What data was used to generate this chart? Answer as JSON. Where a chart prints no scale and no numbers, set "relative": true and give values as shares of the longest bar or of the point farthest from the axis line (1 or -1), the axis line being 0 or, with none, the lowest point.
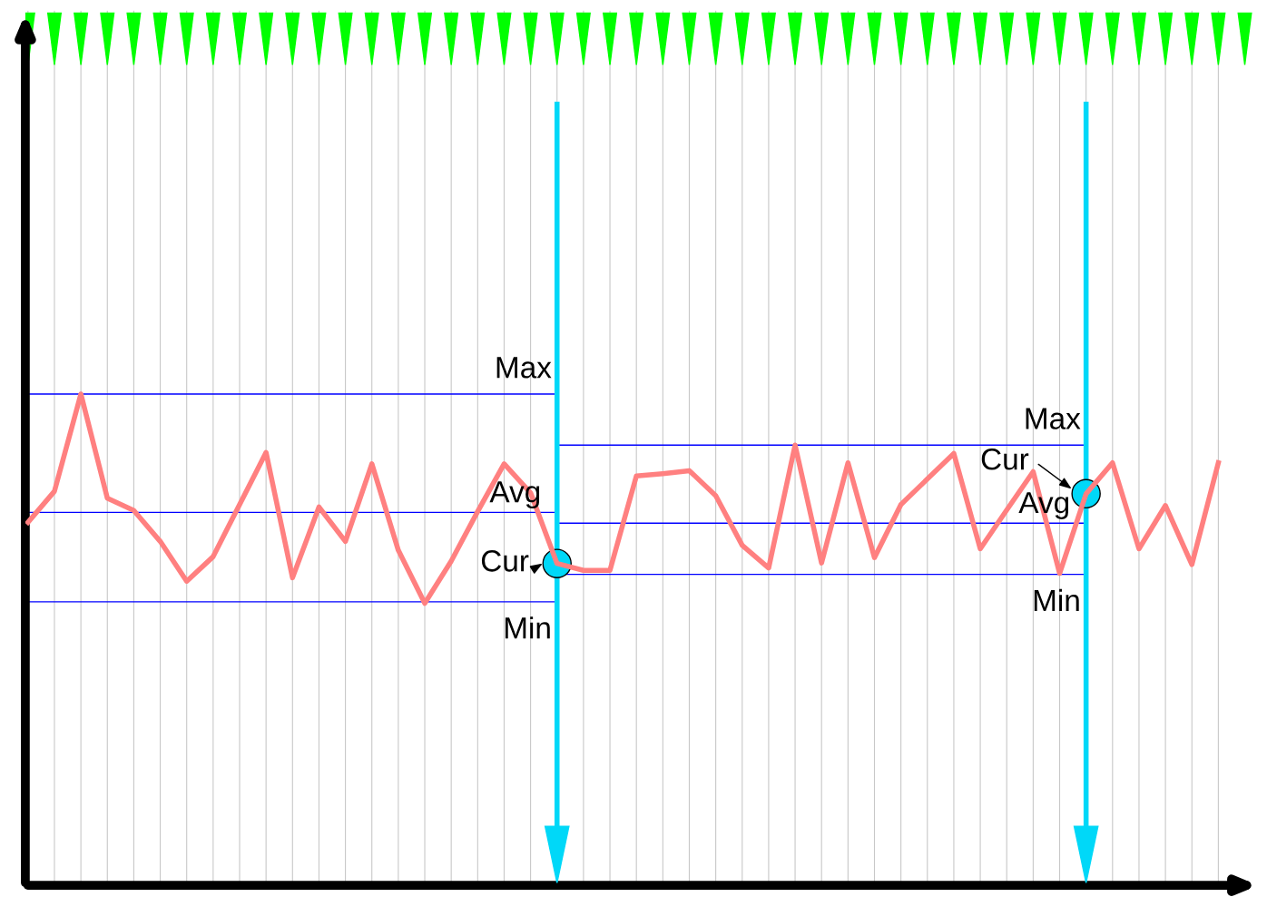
{
  "chart_data": {
    "type": "line",
    "relative": true,
    "grid": "x",
    "categories": [
      null,
      null,
      null,
      null,
      null,
      null,
      null,
      null,
      null,
      null,
      null,
      null,
      null,
      null,
      null,
      null,
      null,
      null,
      null,
      null,
      null,
      null,
      null,
      null,
      null,
      null,
      null,
      null,
      null,
      null,
      null,
      null,
      null,
      null,
      null,
      null,
      null,
      null,
      null,
      null,
      null,
      null,
      null,
      null,
      null,
      null
    ],
    "series": [
      {
        "color": "#ff8080",
        "values": [
          0.739,
          0.802,
          1.0,
          0.788,
          0.763,
          0.7,
          0.619,
          0.669,
          0.775,
          0.881,
          0.626,
          0.77,
          0.7,
          0.858,
          0.682,
          0.574,
          0.66,
          0.761,
          0.858,
          0.799,
          0.655,
          0.641,
          0.641,
          0.833,
          0.838,
          0.844,
          0.793,
          0.692,
          0.646,
          0.896,
          0.656,
          0.86,
          0.667,
          0.775,
          0.827,
          0.879,
          0.685,
          0.764,
          0.842,
          0.635,
          0.797,
          0.86,
          0.685,
          0.773,
          0.653,
          0.86
        ]
      }
    ],
    "ref_lines": [
      {
        "axis": "y",
        "value": 1.0,
        "label": "Max",
        "color": "#0000ff"
      },
      {
        "axis": "y",
        "value": 0.759,
        "label": "Avg",
        "color": "#0000ff"
      },
      {
        "axis": "y",
        "value": 0.577,
        "label": "Min",
        "color": "#0000ff"
      },
      {
        "axis": "y",
        "value": 0.896,
        "label": "Max",
        "color": "#0000ff"
      },
      {
        "axis": "y",
        "value": 0.737,
        "label": "Avg",
        "color": "#0000ff"
      },
      {
        "axis": "y",
        "value": 0.633,
        "label": "Min",
        "color": "#0000ff"
      }
    ],
    "annotations": [
      "Cur",
      "Cur"
    ]
  }
}
